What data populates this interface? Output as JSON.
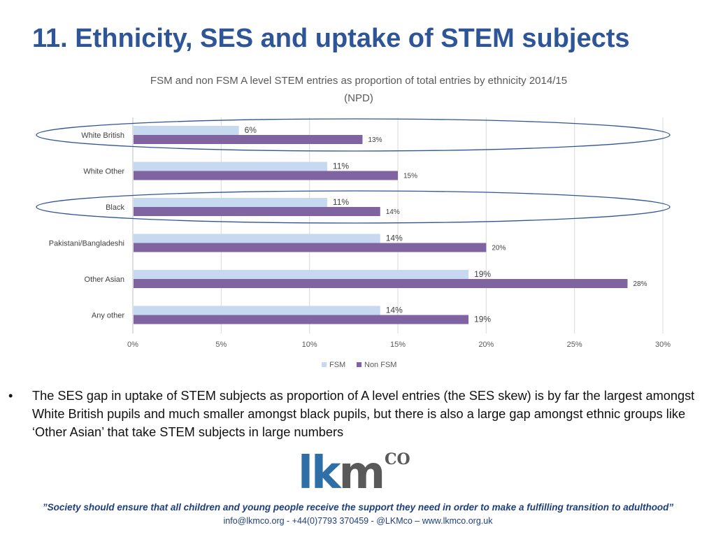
{
  "slide": {
    "title": "11. Ethnicity, SES and uptake of STEM subjects"
  },
  "chart_data": {
    "type": "bar",
    "orientation": "horizontal",
    "title": "FSM and non FSM A level STEM entries as proportion of total entries by ethnicity 2014/15",
    "subtitle": "(NPD)",
    "categories": [
      "White British",
      "White Other",
      "Black",
      "Pakistani/Bangladeshi",
      "Other Asian",
      "Any other"
    ],
    "series": [
      {
        "name": "FSM",
        "values": [
          6,
          11,
          11,
          14,
          19,
          14
        ],
        "labels": [
          "6%",
          "11%",
          "11%",
          "14%",
          "19%",
          "14%"
        ],
        "color": "#c6d9f0"
      },
      {
        "name": "Non FSM",
        "values": [
          13,
          15,
          14,
          20,
          28,
          19
        ],
        "labels": [
          "13%",
          "15%",
          "14%",
          "20%",
          "28%",
          "19%"
        ],
        "color": "#8064a2"
      }
    ],
    "xlim": [
      0,
      30
    ],
    "x_ticks": [
      "0%",
      "5%",
      "10%",
      "15%",
      "20%",
      "25%",
      "30%"
    ],
    "grid": true,
    "legend_position": "bottom",
    "highlighted_categories": [
      "White British",
      "Black"
    ],
    "highlight_color": "#2e5597"
  },
  "bullet": {
    "symbol": "•",
    "text": "The SES gap in uptake of STEM subjects as proportion of A level entries (the SES skew) is by far the largest amongst White British pupils and much smaller amongst black pupils, but there is also a large gap amongst ethnic groups like ‘Other Asian’ that take STEM subjects in large numbers"
  },
  "logo": {
    "main_part1": "lk",
    "main_part2": "m",
    "superscript": "CO",
    "color_primary": "#2e6fa7",
    "color_secondary": "#595959"
  },
  "footer": {
    "quote": "”Society should ensure that all children and young people receive the support they need in order to make a fulfilling transition to adulthood”",
    "contact": "info@lkmco.org - +44(0)7793 370459 - @LKMco – www.lkmco.org.uk"
  }
}
